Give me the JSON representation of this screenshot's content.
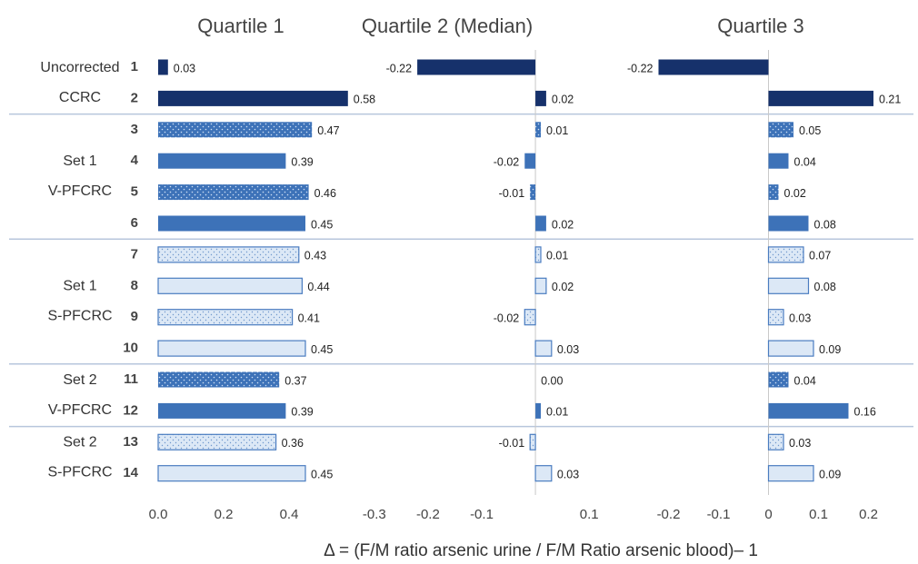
{
  "figure": {
    "xlabel": "Δ = (F/M ratio arsenic urine / F/M Ratio arsenic blood)– 1",
    "groups": [
      {
        "lines": [
          "Uncorrected",
          "CCRC"
        ],
        "count": 2
      },
      {
        "lines": [
          "Set 1",
          "V-PFCRC"
        ],
        "count": 4
      },
      {
        "lines": [
          "Set 1",
          "S-PFCRC"
        ],
        "count": 4
      },
      {
        "lines": [
          "Set 2",
          "V-PFCRC"
        ],
        "count": 2
      },
      {
        "lines": [
          "Set 2",
          "S-PFCRC"
        ],
        "count": 2
      }
    ],
    "row_styles": [
      "dark",
      "dark",
      "medium-dotted",
      "medium",
      "medium-dotted",
      "medium",
      "light-dotted",
      "light",
      "light-dotted",
      "light",
      "medium-dotted",
      "medium",
      "light-dotted",
      "light"
    ]
  },
  "chart_data": [
    {
      "type": "bar",
      "orientation": "horizontal",
      "title": "Quartile 1",
      "categories": [
        "1",
        "2",
        "3",
        "4",
        "5",
        "6",
        "7",
        "8",
        "9",
        "10",
        "11",
        "12",
        "13",
        "14"
      ],
      "values": [
        0.03,
        0.58,
        0.47,
        0.39,
        0.46,
        0.45,
        0.43,
        0.44,
        0.41,
        0.45,
        0.37,
        0.39,
        0.36,
        0.45
      ],
      "xlim": [
        0,
        0.6
      ],
      "xticks": [
        {
          "value": 0,
          "label": "0.0"
        },
        0.2,
        0.4
      ]
    },
    {
      "type": "bar",
      "orientation": "horizontal",
      "title": "Quartile 2 (Median)",
      "values": [
        -0.22,
        0.02,
        0.01,
        -0.02,
        -0.01,
        0.02,
        0.01,
        0.02,
        -0.02,
        0.03,
        0.0,
        0.01,
        -0.01,
        0.03
      ],
      "value_labels": [
        "-0.22",
        "0.02",
        "0.01",
        "-0.02",
        "-0.01",
        "0.02",
        "0.01",
        "0.02",
        "-0.02",
        "0.03",
        "0.00",
        "0.01",
        "-0.01",
        "0.03"
      ],
      "xlim": [
        -0.32,
        0.12
      ],
      "xticks": [
        -0.3,
        -0.2,
        -0.1,
        0.1
      ],
      "zero_line": true
    },
    {
      "type": "bar",
      "orientation": "horizontal",
      "title": "Quartile 3",
      "values": [
        -0.22,
        0.21,
        0.05,
        0.04,
        0.02,
        0.08,
        0.07,
        0.08,
        0.03,
        0.09,
        0.04,
        0.16,
        0.03,
        0.09
      ],
      "xlim": [
        -0.25,
        0.27
      ],
      "xticks": [
        -0.2,
        -0.1,
        0,
        0.1,
        0.2
      ],
      "zero_line": true
    }
  ]
}
